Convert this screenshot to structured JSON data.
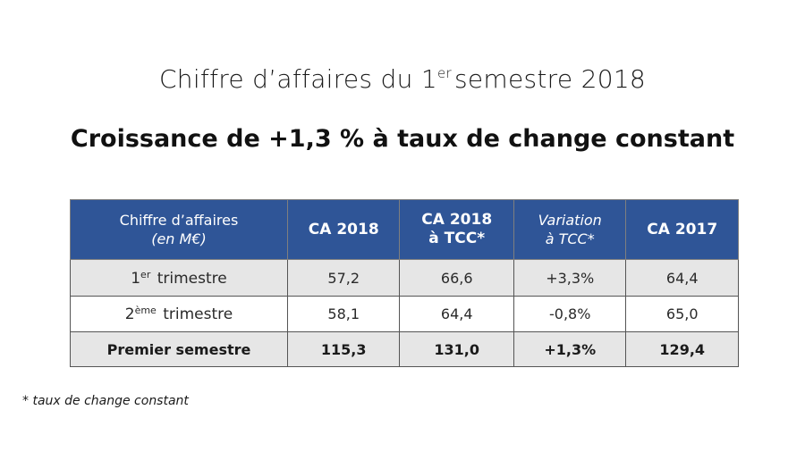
{
  "title": {
    "prefix": "Chiffre d’affaires du 1",
    "ordinal": "er",
    "suffix": "semestre 2018"
  },
  "subtitle": "Croissance de +1,3 % à taux de change constant",
  "table": {
    "headers": {
      "label_line1": "Chiffre d’affaires",
      "label_line2": "(en M€)",
      "ca2018": "CA 2018",
      "ca2018_tcc_line1": "CA 2018",
      "ca2018_tcc_line2": "à TCC*",
      "variation_line1": "Variation",
      "variation_line2": "à TCC*",
      "ca2017": "CA 2017"
    },
    "rows": [
      {
        "label_num": "1",
        "label_sup": "er",
        "label_text": " trimestre",
        "ca2018": "57,2",
        "ca2018_tcc": "66,6",
        "variation": "+3,3%",
        "ca2017": "64,4"
      },
      {
        "label_num": "2",
        "label_sup": "ème",
        "label_text": " trimestre",
        "ca2018": "58,1",
        "ca2018_tcc": "64,4",
        "variation": "-0,8%",
        "ca2017": "65,0"
      },
      {
        "label": "Premier semestre",
        "ca2018": "115,3",
        "ca2018_tcc": "131,0",
        "variation": "+1,3%",
        "ca2017": "129,4"
      }
    ]
  },
  "footnote": "* taux de change constant"
}
